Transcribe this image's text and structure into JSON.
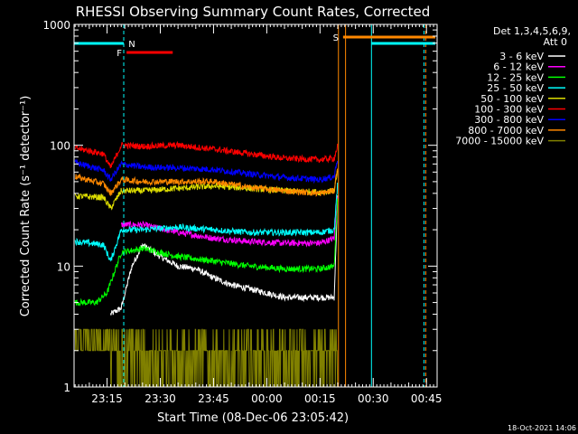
{
  "chart_data": {
    "type": "line",
    "title": "RHESSI Observing Summary Count Rates, Corrected",
    "xlabel": "Start Time (08-Dec-06 23:05:42)",
    "ylabel": "Corrected Count Rate (s⁻¹ detector⁻¹)",
    "y_scale": "log",
    "ylim": [
      1,
      1000
    ],
    "y_ticks": [
      "1",
      "10",
      "100",
      "1000"
    ],
    "x_ticks": [
      "23:15",
      "23:30",
      "23:45",
      "00:00",
      "00:15",
      "00:30",
      "00:45"
    ],
    "x_range_minutes_after_23_00": [
      5.7,
      108
    ],
    "legend_header": [
      "Det 1,3,4,5,6,9,",
      "Att 0"
    ],
    "legend_position": "right",
    "grid": false,
    "footer": "18-Oct-2021 14:06",
    "series": [
      {
        "name": "3 - 6 keV",
        "color": "#ffffff"
      },
      {
        "name": "6 - 12 keV",
        "color": "#ff00ff"
      },
      {
        "name": "12 - 25 keV",
        "color": "#00ff00"
      },
      {
        "name": "25 - 50 keV",
        "color": "#00ffff"
      },
      {
        "name": "50 - 100 keV",
        "color": "#dddd00"
      },
      {
        "name": "100 - 300 keV",
        "color": "#ff0000"
      },
      {
        "name": "300 - 800 keV",
        "color": "#0000ff"
      },
      {
        "name": "800 - 7000 keV",
        "color": "#ff8800"
      },
      {
        "name": "7000 - 15000 keV",
        "color": "#808000"
      }
    ],
    "flags": [
      {
        "label": "N",
        "color": "#00ffff",
        "t_start": 5.7,
        "t_end": 19.7
      },
      {
        "label": "F",
        "color": "#ff0000",
        "t_start": 20.5,
        "t_end": 33.5
      },
      {
        "label": "S",
        "color": "#ff8800",
        "t_start": 81.5,
        "t_end": 107.5
      }
    ],
    "night_markers": [
      {
        "t_start": 89.5,
        "t_end": 104.3,
        "color": "#00ffff"
      }
    ],
    "saa_markers": [
      {
        "t": 80.2,
        "t2": 82.2,
        "color": "#ff8800"
      }
    ],
    "series_levels": {
      "3 - 6 keV": [
        [
          16,
          4
        ],
        [
          19,
          4.5
        ],
        [
          22,
          10
        ],
        [
          25,
          15
        ],
        [
          30,
          12
        ],
        [
          35,
          10
        ],
        [
          40,
          9.5
        ],
        [
          45,
          8
        ],
        [
          50,
          7
        ],
        [
          55,
          6.5
        ],
        [
          60,
          6
        ],
        [
          65,
          5.5
        ],
        [
          70,
          5.5
        ],
        [
          75,
          5.5
        ],
        [
          79,
          5.5
        ],
        [
          80,
          40
        ]
      ],
      "6 - 12 keV": [
        [
          19,
          22
        ],
        [
          25,
          22
        ],
        [
          35,
          19
        ],
        [
          45,
          17
        ],
        [
          55,
          16
        ],
        [
          65,
          15.5
        ],
        [
          75,
          15.5
        ],
        [
          79,
          17
        ],
        [
          80,
          40
        ]
      ],
      "12 - 25 keV": [
        [
          6,
          5
        ],
        [
          12,
          5
        ],
        [
          15,
          6
        ],
        [
          19,
          13
        ],
        [
          25,
          14
        ],
        [
          35,
          12
        ],
        [
          45,
          11
        ],
        [
          55,
          10
        ],
        [
          65,
          9.5
        ],
        [
          75,
          9.5
        ],
        [
          79,
          10
        ],
        [
          80,
          40
        ]
      ],
      "25 - 50 keV": [
        [
          6,
          16
        ],
        [
          14,
          15
        ],
        [
          16,
          11
        ],
        [
          19,
          20
        ],
        [
          25,
          20
        ],
        [
          35,
          21
        ],
        [
          45,
          20
        ],
        [
          55,
          19
        ],
        [
          65,
          19
        ],
        [
          75,
          19
        ],
        [
          79,
          20
        ],
        [
          80,
          50
        ]
      ],
      "50 - 100 keV": [
        [
          6,
          38
        ],
        [
          14,
          37
        ],
        [
          16,
          30
        ],
        [
          19,
          42
        ],
        [
          25,
          42
        ],
        [
          35,
          44
        ],
        [
          45,
          46
        ],
        [
          55,
          44
        ],
        [
          65,
          42
        ],
        [
          75,
          41
        ],
        [
          79,
          42
        ],
        [
          80,
          60
        ]
      ],
      "100 - 300 keV": [
        [
          6,
          95
        ],
        [
          14,
          85
        ],
        [
          16,
          65
        ],
        [
          19,
          100
        ],
        [
          25,
          98
        ],
        [
          35,
          100
        ],
        [
          45,
          93
        ],
        [
          55,
          85
        ],
        [
          65,
          78
        ],
        [
          75,
          76
        ],
        [
          79,
          78
        ],
        [
          80,
          100
        ]
      ],
      "300 - 800 keV": [
        [
          6,
          72
        ],
        [
          14,
          62
        ],
        [
          16,
          52
        ],
        [
          19,
          70
        ],
        [
          25,
          66
        ],
        [
          35,
          65
        ],
        [
          45,
          63
        ],
        [
          55,
          58
        ],
        [
          65,
          54
        ],
        [
          75,
          52
        ],
        [
          79,
          55
        ],
        [
          80,
          80
        ]
      ],
      "800 - 7000 keV": [
        [
          6,
          55
        ],
        [
          14,
          48
        ],
        [
          16,
          40
        ],
        [
          19,
          52
        ],
        [
          25,
          50
        ],
        [
          35,
          50
        ],
        [
          45,
          50
        ],
        [
          55,
          45
        ],
        [
          65,
          42
        ],
        [
          75,
          40
        ],
        [
          79,
          42
        ],
        [
          80,
          70
        ]
      ],
      "7000 - 15000 keV": [
        [
          6,
          2.4
        ],
        [
          80,
          2.4
        ]
      ]
    }
  }
}
